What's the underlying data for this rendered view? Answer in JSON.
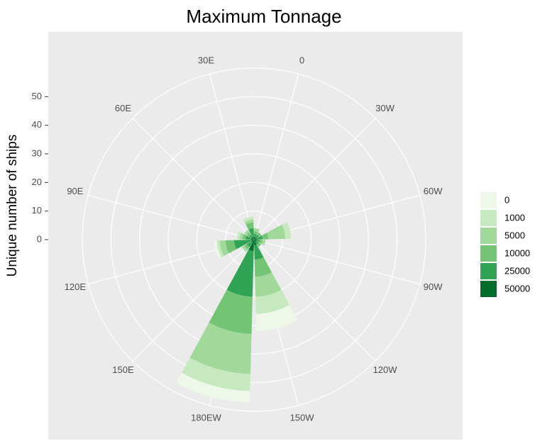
{
  "chart_data": {
    "type": "polar_stacked_bar",
    "title": "Maximum Tonnage",
    "y_label": "Unique number of ships",
    "categories": [
      "0",
      "30W",
      "60W",
      "90W",
      "120W",
      "150W",
      "180EW",
      "150E",
      "120E",
      "90E",
      "60E",
      "30E"
    ],
    "series": [
      {
        "name": "0",
        "color": "#edf8e9",
        "values": [
          0,
          0,
          0,
          0,
          0,
          6,
          4,
          0,
          1,
          0,
          0,
          0
        ]
      },
      {
        "name": "1000",
        "color": "#c7e9c0",
        "values": [
          0,
          0,
          2,
          0,
          0,
          6,
          6,
          0,
          1,
          1,
          0,
          1
        ]
      },
      {
        "name": "5000",
        "color": "#a1d99b",
        "values": [
          1,
          0,
          6,
          1,
          0,
          7,
          14,
          1,
          2,
          1,
          1,
          1
        ]
      },
      {
        "name": "10000",
        "color": "#74c476",
        "values": [
          1,
          1,
          2,
          1,
          1,
          6,
          13,
          1,
          3,
          1,
          1,
          2
        ]
      },
      {
        "name": "25000",
        "color": "#31a354",
        "values": [
          1,
          1,
          2,
          1,
          1,
          5,
          16,
          2,
          6,
          2,
          1,
          3
        ]
      },
      {
        "name": "50000",
        "color": "#006d2c",
        "values": [
          1,
          1,
          1,
          1,
          1,
          2,
          4,
          1,
          1,
          1,
          1,
          1
        ]
      }
    ],
    "ylim": [
      0,
      60
    ],
    "yticks": [
      0,
      10,
      20,
      30,
      40,
      50
    ],
    "grid": true
  }
}
